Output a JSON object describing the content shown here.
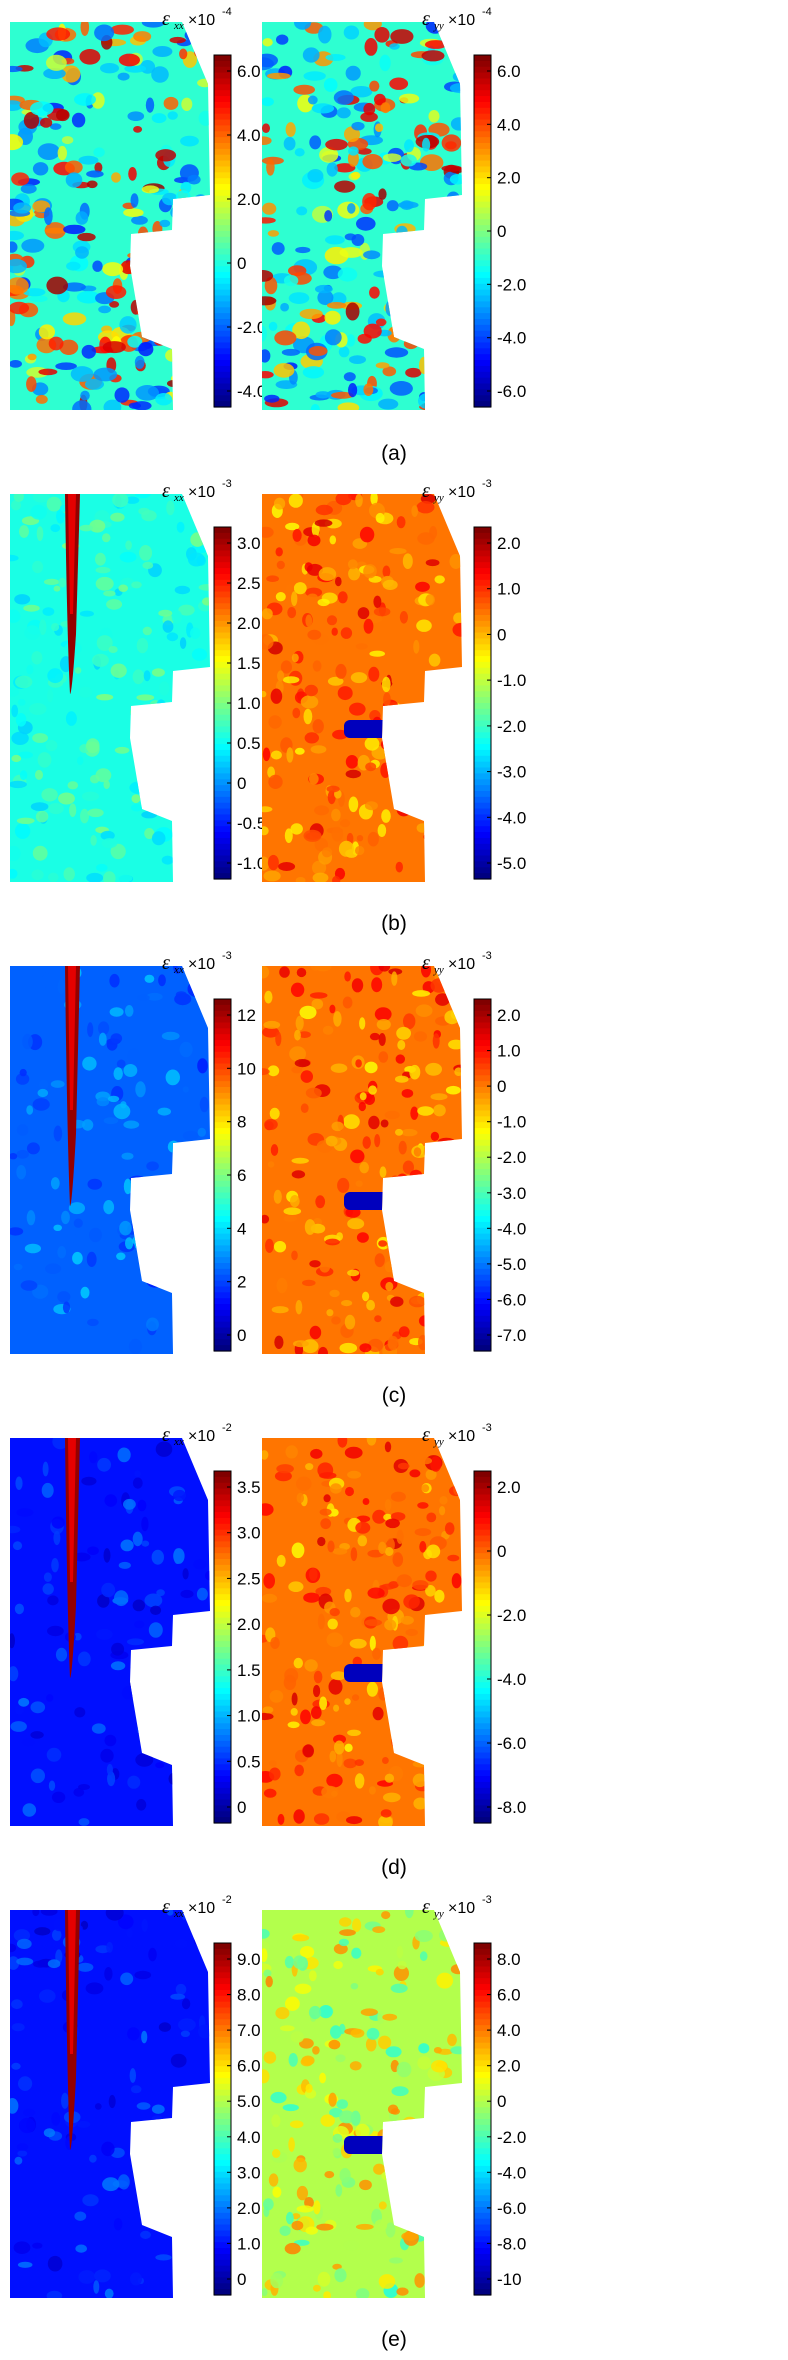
{
  "figure": {
    "panels": [
      {
        "caption": "(a)",
        "left": {
          "field": "noisy",
          "label_main": "ε",
          "label_sub": "xx",
          "label_mult": "×10",
          "label_exp": "-4",
          "ticks": [
            "6.0",
            "4.0",
            "2.0",
            "0",
            "-2.0",
            "-4.0"
          ]
        },
        "right": {
          "field": "noisy-y",
          "label_main": "ε",
          "label_sub": "yy",
          "label_mult": "×10",
          "label_exp": "-4",
          "ticks": [
            "6.0",
            "4.0",
            "2.0",
            "0",
            "-2.0",
            "-4.0",
            "-6.0"
          ]
        }
      },
      {
        "caption": "(b)",
        "left": {
          "field": "crack-x-early",
          "label_main": "ε",
          "label_sub": "xx",
          "label_mult": "×10",
          "label_exp": "-3",
          "ticks": [
            "3.0",
            "2.5",
            "2.0",
            "1.5",
            "1.0",
            "0.5",
            "0",
            "-0.5",
            "-1.0"
          ]
        },
        "right": {
          "field": "crack-y",
          "label_main": "ε",
          "label_sub": "yy",
          "label_mult": "×10",
          "label_exp": "-3",
          "ticks": [
            "2.0",
            "1.0",
            "0",
            "-1.0",
            "-2.0",
            "-3.0",
            "-4.0",
            "-5.0"
          ]
        }
      },
      {
        "caption": "(c)",
        "left": {
          "field": "crack-x",
          "label_main": "ε",
          "label_sub": "xx",
          "label_mult": "×10",
          "label_exp": "-3",
          "ticks": [
            "12",
            "10",
            "8",
            "6",
            "4",
            "2",
            "0"
          ]
        },
        "right": {
          "field": "crack-y",
          "label_main": "ε",
          "label_sub": "yy",
          "label_mult": "×10",
          "label_exp": "-3",
          "ticks": [
            "2.0",
            "1.0",
            "0",
            "-1.0",
            "-2.0",
            "-3.0",
            "-4.0",
            "-5.0",
            "-6.0",
            "-7.0"
          ]
        }
      },
      {
        "caption": "(d)",
        "left": {
          "field": "crack-x-late",
          "label_main": "ε",
          "label_sub": "xx",
          "label_mult": "×10",
          "label_exp": "-2",
          "ticks": [
            "3.5",
            "3.0",
            "2.5",
            "2.0",
            "1.5",
            "1.0",
            "0.5",
            "0"
          ]
        },
        "right": {
          "field": "crack-y",
          "label_main": "ε",
          "label_sub": "yy",
          "label_mult": "×10",
          "label_exp": "-3",
          "ticks": [
            "2.0",
            "0",
            "-2.0",
            "-4.0",
            "-6.0",
            "-8.0"
          ]
        }
      },
      {
        "caption": "(e)",
        "left": {
          "field": "crack-x-late",
          "label_main": "ε",
          "label_sub": "xx",
          "label_mult": "×10",
          "label_exp": "-2",
          "ticks": [
            "9.0",
            "8.0",
            "7.0",
            "6.0",
            "5.0",
            "4.0",
            "3.0",
            "2.0",
            "1.0",
            "0"
          ]
        },
        "right": {
          "field": "crack-y-late",
          "label_main": "ε",
          "label_sub": "yy",
          "label_mult": "×10",
          "label_exp": "-3",
          "ticks": [
            "8.0",
            "6.0",
            "4.0",
            "2.0",
            "0",
            "-2.0",
            "-4.0",
            "-6.0",
            "-8.0",
            "-10"
          ]
        }
      }
    ]
  }
}
